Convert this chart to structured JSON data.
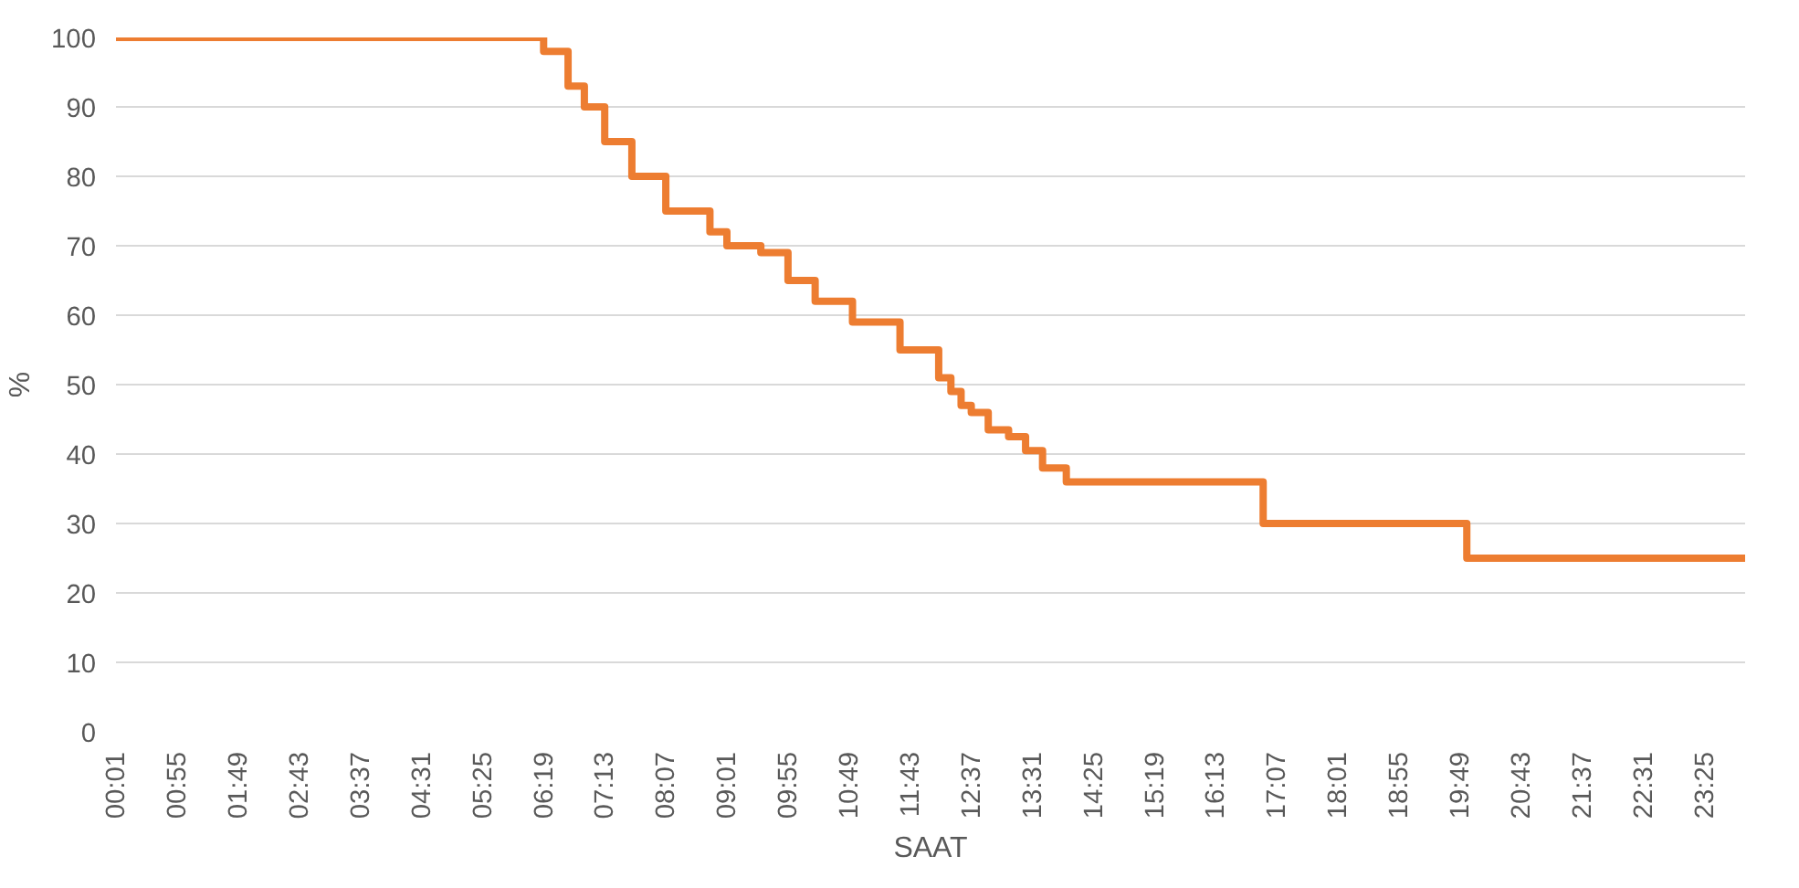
{
  "chart_data": {
    "type": "step",
    "xlabel": "SAAT",
    "ylabel": "%",
    "x": [
      0,
      6.3,
      6.66,
      6.9,
      7.2,
      7.6,
      8.1,
      8.75,
      9.0,
      9.5,
      9.9,
      10.3,
      10.85,
      11.55,
      12.12,
      12.3,
      12.45,
      12.6,
      12.85,
      13.15,
      13.4,
      13.65,
      14.0,
      16.9,
      19.9,
      24
    ],
    "series": [
      {
        "color": "#ed7d31",
        "values": [
          100,
          98,
          93,
          90,
          85,
          80,
          75,
          72,
          70,
          69,
          65,
          62,
          59,
          55,
          51,
          49,
          47,
          46,
          43.5,
          42.5,
          40.5,
          38,
          36,
          30,
          25,
          25
        ]
      }
    ],
    "xlim": [
      0,
      24
    ],
    "xticks": [
      {
        "value": 0.0167,
        "label": "00:01"
      },
      {
        "value": 0.9167,
        "label": "00:55"
      },
      {
        "value": 1.8167,
        "label": "01:49"
      },
      {
        "value": 2.7167,
        "label": "02:43"
      },
      {
        "value": 3.6167,
        "label": "03:37"
      },
      {
        "value": 4.5167,
        "label": "04:31"
      },
      {
        "value": 5.4167,
        "label": "05:25"
      },
      {
        "value": 6.3167,
        "label": "06:19"
      },
      {
        "value": 7.2167,
        "label": "07:13"
      },
      {
        "value": 8.1167,
        "label": "08:07"
      },
      {
        "value": 9.0167,
        "label": "09:01"
      },
      {
        "value": 9.9167,
        "label": "09:55"
      },
      {
        "value": 10.8167,
        "label": "10:49"
      },
      {
        "value": 11.7167,
        "label": "11:43"
      },
      {
        "value": 12.6167,
        "label": "12:37"
      },
      {
        "value": 13.5167,
        "label": "13:31"
      },
      {
        "value": 14.4167,
        "label": "14:25"
      },
      {
        "value": 15.3167,
        "label": "15:19"
      },
      {
        "value": 16.2167,
        "label": "16:13"
      },
      {
        "value": 17.1167,
        "label": "17:07"
      },
      {
        "value": 18.0167,
        "label": "18:01"
      },
      {
        "value": 18.9167,
        "label": "18:55"
      },
      {
        "value": 19.8167,
        "label": "19:49"
      },
      {
        "value": 20.7167,
        "label": "20:43"
      },
      {
        "value": 21.6167,
        "label": "21:37"
      },
      {
        "value": 22.5167,
        "label": "22:31"
      },
      {
        "value": 23.4167,
        "label": "23:25"
      }
    ],
    "ylim": [
      0,
      100
    ],
    "yticks": [
      0,
      10,
      20,
      30,
      40,
      50,
      60,
      70,
      80,
      90,
      100
    ],
    "grid": "y",
    "line_style": "solid"
  }
}
